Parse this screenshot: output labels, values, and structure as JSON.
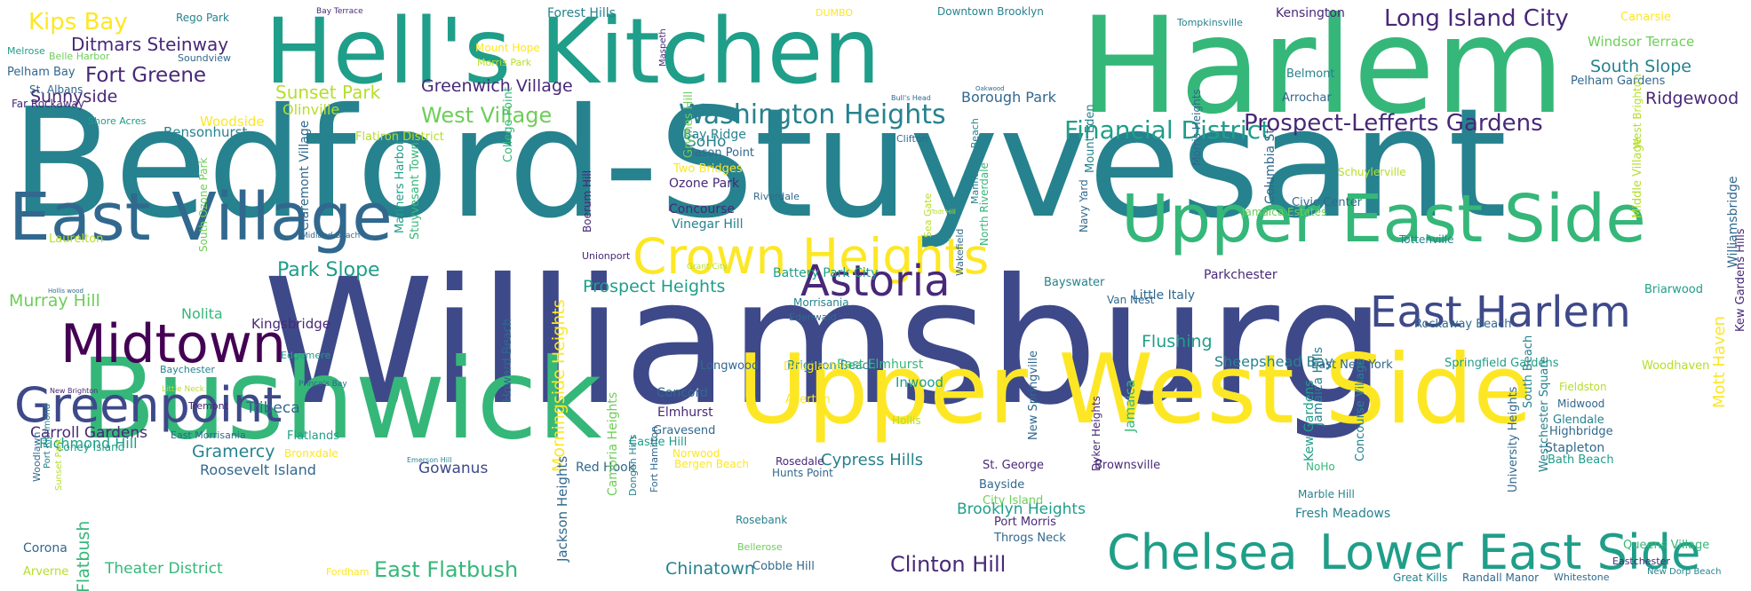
{
  "palette": {
    "p0": "#440154",
    "p1": "#482878",
    "p2": "#3e4989",
    "p3": "#31688e",
    "p4": "#26828e",
    "p5": "#1f9e89",
    "p6": "#35b779",
    "p7": "#6ece58",
    "p8": "#b5de2b",
    "p9": "#fde725"
  },
  "words": [
    {
      "text": "Bedford-Stuyvesant",
      "c": "p4"
    },
    {
      "text": "Williamsburg",
      "c": "p2"
    },
    {
      "text": "Harlem",
      "c": "p6"
    },
    {
      "text": "Hell's Kitchen",
      "c": "p5"
    },
    {
      "text": "Bushwick",
      "c": "p6"
    },
    {
      "text": "Upper West Side",
      "c": "p9"
    },
    {
      "text": "East Village",
      "c": "p3"
    },
    {
      "text": "Upper East Side",
      "c": "p6"
    },
    {
      "text": "Crown Heights",
      "c": "p9"
    },
    {
      "text": "Midtown",
      "c": "p0"
    },
    {
      "text": "Greenpoint",
      "c": "p2"
    },
    {
      "text": "Chelsea",
      "c": "p5"
    },
    {
      "text": "Lower East Side",
      "c": "p5"
    },
    {
      "text": "East Harlem",
      "c": "p2"
    },
    {
      "text": "Astoria",
      "c": "p1"
    },
    {
      "text": "Washington Heights",
      "c": "p4"
    },
    {
      "text": "Long Island City",
      "c": "p1"
    },
    {
      "text": "Financial District",
      "c": "p5"
    },
    {
      "text": "Prospect-Lefferts Gardens",
      "c": "p1"
    },
    {
      "text": "Kips Bay",
      "c": "p9"
    },
    {
      "text": "Fort Greene",
      "c": "p1"
    },
    {
      "text": "Ditmars Steinway",
      "c": "p1"
    },
    {
      "text": "Sunnyside",
      "c": "p1"
    },
    {
      "text": "West Village",
      "c": "p7"
    },
    {
      "text": "Greenwich Village",
      "c": "p1"
    },
    {
      "text": "Sunset Park",
      "c": "p8"
    },
    {
      "text": "Park Slope",
      "c": "p5"
    },
    {
      "text": "Murray Hill",
      "c": "p7"
    },
    {
      "text": "Prospect Heights",
      "c": "p5"
    },
    {
      "text": "Ridgewood",
      "c": "p1"
    },
    {
      "text": "South Slope",
      "c": "p4"
    },
    {
      "text": "Clinton Hill",
      "c": "p1"
    },
    {
      "text": "East Flatbush",
      "c": "p6"
    },
    {
      "text": "Flushing",
      "c": "p5"
    },
    {
      "text": "Carroll Gardens",
      "c": "p1"
    },
    {
      "text": "Gramercy",
      "c": "p4"
    },
    {
      "text": "Tribeca",
      "c": "p3"
    },
    {
      "text": "Nolita",
      "c": "p6"
    },
    {
      "text": "Gowanus",
      "c": "p2"
    },
    {
      "text": "Chinatown",
      "c": "p4"
    },
    {
      "text": "Cypress Hills",
      "c": "p4"
    },
    {
      "text": "Brooklyn Heights",
      "c": "p5"
    },
    {
      "text": "Theater District",
      "c": "p6"
    },
    {
      "text": "Roosevelt Island",
      "c": "p3"
    },
    {
      "text": "Flatbush",
      "c": "p6"
    },
    {
      "text": "Morningside Heights",
      "c": "p9"
    },
    {
      "text": "Richmond Hill",
      "c": "p5"
    },
    {
      "text": "SoHo",
      "c": "p4"
    },
    {
      "text": "Borough Park",
      "c": "p3"
    },
    {
      "text": "Woodside",
      "c": "p9"
    },
    {
      "text": "Kingsbridge",
      "c": "p1"
    },
    {
      "text": "Bensonhurst",
      "c": "p4"
    },
    {
      "text": "Bay Ridge",
      "c": "p4"
    },
    {
      "text": "Clason Point",
      "c": "p3"
    },
    {
      "text": "Two Bridges",
      "c": "p9"
    },
    {
      "text": "Forest Hills",
      "c": "p4"
    },
    {
      "text": "Rego Park",
      "c": "p4"
    },
    {
      "text": "Bay Terrace",
      "c": "p1"
    },
    {
      "text": "DUMBO",
      "c": "p9"
    },
    {
      "text": "Downtown Brooklyn",
      "c": "p4"
    },
    {
      "text": "Kensington",
      "c": "p1"
    },
    {
      "text": "Tompkinsville",
      "c": "p4"
    },
    {
      "text": "Canarsie",
      "c": "p9"
    },
    {
      "text": "Windsor Terrace",
      "c": "p7"
    },
    {
      "text": "Belmont",
      "c": "p4"
    },
    {
      "text": "Pelham Gardens",
      "c": "p3"
    },
    {
      "text": "Arrochar",
      "c": "p3"
    },
    {
      "text": "Civic Center",
      "c": "p3"
    },
    {
      "text": "Schuylerville",
      "c": "p8"
    },
    {
      "text": "Jamaica Estates",
      "c": "p7"
    },
    {
      "text": "Tottenville",
      "c": "p4"
    },
    {
      "text": "Briarwood",
      "c": "p5"
    },
    {
      "text": "Parkchester",
      "c": "p1"
    },
    {
      "text": "Little Italy",
      "c": "p3"
    },
    {
      "text": "Rockaway Beach",
      "c": "p3"
    },
    {
      "text": "Sheepshead Bay",
      "c": "p4"
    },
    {
      "text": "East New York",
      "c": "p3"
    },
    {
      "text": "Springfield Gardens",
      "c": "p5"
    },
    {
      "text": "Woodhaven",
      "c": "p8"
    },
    {
      "text": "Van Nest",
      "c": "p3"
    },
    {
      "text": "Bayswater",
      "c": "p4"
    },
    {
      "text": "Vinegar Hill",
      "c": "p4"
    },
    {
      "text": "Concourse",
      "c": "p1"
    },
    {
      "text": "Ozone Park",
      "c": "p1"
    },
    {
      "text": "Riverdale",
      "c": "p3"
    },
    {
      "text": "Battery Park City",
      "c": "p5"
    },
    {
      "text": "Morrisania",
      "c": "p4"
    },
    {
      "text": "Edenwald",
      "c": "p3"
    },
    {
      "text": "Brighton Beach",
      "c": "p4"
    },
    {
      "text": "East Elmhurst",
      "c": "p6"
    },
    {
      "text": "Longwood",
      "c": "p3"
    },
    {
      "text": "Concord",
      "c": "p3"
    },
    {
      "text": "Elmhurst",
      "c": "p1"
    },
    {
      "text": "Gravesend",
      "c": "p3"
    },
    {
      "text": "Castle Hill",
      "c": "p5"
    },
    {
      "text": "Norwood",
      "c": "p9"
    },
    {
      "text": "Bergen Beach",
      "c": "p9"
    },
    {
      "text": "Rosedale",
      "c": "p1"
    },
    {
      "text": "Hunts Point",
      "c": "p3"
    },
    {
      "text": "Allerton",
      "c": "p9"
    },
    {
      "text": "Douglaston",
      "c": "p9"
    },
    {
      "text": "Inwood",
      "c": "p5"
    },
    {
      "text": "Hollis",
      "c": "p8"
    },
    {
      "text": "Red Hook",
      "c": "p3"
    },
    {
      "text": "St. George",
      "c": "p1"
    },
    {
      "text": "Brownsville",
      "c": "p1"
    },
    {
      "text": "NoHo",
      "c": "p6"
    },
    {
      "text": "Marble Hill",
      "c": "p4"
    },
    {
      "text": "Fresh Meadows",
      "c": "p4"
    },
    {
      "text": "City Island",
      "c": "p7"
    },
    {
      "text": "Bayside",
      "c": "p3"
    },
    {
      "text": "Port Morris",
      "c": "p1"
    },
    {
      "text": "Throgs Neck",
      "c": "p3"
    },
    {
      "text": "Cobble Hill",
      "c": "p3"
    },
    {
      "text": "Bellerose",
      "c": "p7"
    },
    {
      "text": "Rosebank",
      "c": "p4"
    },
    {
      "text": "Fordham",
      "c": "p9"
    },
    {
      "text": "Arverne",
      "c": "p8"
    },
    {
      "text": "Corona",
      "c": "p3"
    },
    {
      "text": "Coney Island",
      "c": "p5"
    },
    {
      "text": "East Morrisania",
      "c": "p3"
    },
    {
      "text": "Flatlands",
      "c": "p5"
    },
    {
      "text": "Bronxdale",
      "c": "p9"
    },
    {
      "text": "Emerson Hill",
      "c": "p4"
    },
    {
      "text": "Tremont",
      "c": "p1"
    },
    {
      "text": "Little Neck",
      "c": "p8"
    },
    {
      "text": "New Brighton",
      "c": "p1"
    },
    {
      "text": "Prince's Bay",
      "c": "p3"
    },
    {
      "text": "Baychester",
      "c": "p4"
    },
    {
      "text": "Edgemere",
      "c": "p5"
    },
    {
      "text": "Hollis wood",
      "c": "p3"
    },
    {
      "text": "Laurelton",
      "c": "p8"
    },
    {
      "text": "Midland Beach",
      "c": "p3"
    },
    {
      "text": "Unionport",
      "c": "p1"
    },
    {
      "text": "Grant City",
      "c": "p8"
    },
    {
      "text": "Sea Gate",
      "c": "p8"
    },
    {
      "text": "Navy Yard",
      "c": "p3"
    },
    {
      "text": "Flatiron District",
      "c": "p8"
    },
    {
      "text": "Bull's Head",
      "c": "p3"
    },
    {
      "text": "Oakwood",
      "c": "p3"
    },
    {
      "text": "Clifton",
      "c": "p3"
    },
    {
      "text": "Todt Hill",
      "c": "p8"
    },
    {
      "text": "Shore Acres",
      "c": "p5"
    },
    {
      "text": "Far Rockaway",
      "c": "p1"
    },
    {
      "text": "St. Albans",
      "c": "p3"
    },
    {
      "text": "Pelham Bay",
      "c": "p3"
    },
    {
      "text": "Melrose",
      "c": "p5"
    },
    {
      "text": "Belle Harbor",
      "c": "p7"
    },
    {
      "text": "Soundview",
      "c": "p3"
    },
    {
      "text": "Mount Hope",
      "c": "p9"
    },
    {
      "text": "Morris Park",
      "c": "p8"
    },
    {
      "text": "Highbridge",
      "c": "p3"
    },
    {
      "text": "Stapleton",
      "c": "p3"
    },
    {
      "text": "Bath Beach",
      "c": "p5"
    },
    {
      "text": "Glendale",
      "c": "p4"
    },
    {
      "text": "Midwood",
      "c": "p3"
    },
    {
      "text": "Fieldston",
      "c": "p8"
    },
    {
      "text": "Queens Village",
      "c": "p6"
    },
    {
      "text": "Eastchester",
      "c": "p1"
    },
    {
      "text": "Great Kills",
      "c": "p4"
    },
    {
      "text": "Randall Manor",
      "c": "p3"
    },
    {
      "text": "Whitestone",
      "c": "p3"
    },
    {
      "text": "New Dorp Beach",
      "c": "p4"
    },
    {
      "text": "Mott Haven",
      "c": "p9"
    },
    {
      "text": "Kew Gardens Hills",
      "c": "p1"
    },
    {
      "text": "Williamsbridge",
      "c": "p3"
    },
    {
      "text": "Middle Village",
      "c": "p8"
    },
    {
      "text": "West Brighton",
      "c": "p8"
    },
    {
      "text": "Jamaica Hills",
      "c": "p4"
    },
    {
      "text": "University Heights",
      "c": "p3"
    },
    {
      "text": "Westchester Square",
      "c": "p4"
    },
    {
      "text": "South Beach",
      "c": "p4"
    },
    {
      "text": "Concourse Village",
      "c": "p4"
    },
    {
      "text": "Kew Gardens",
      "c": "p5"
    },
    {
      "text": "Jamaica",
      "c": "p6"
    },
    {
      "text": "Dyker Heights",
      "c": "p1"
    },
    {
      "text": "New Springville",
      "c": "p3"
    },
    {
      "text": "Columbia St",
      "c": "p3"
    },
    {
      "text": "Morris Heights",
      "c": "p3"
    },
    {
      "text": "Mount Eden",
      "c": "p4"
    },
    {
      "text": "North Riverdale",
      "c": "p6"
    },
    {
      "text": "Manhattan Beach",
      "c": "p4"
    },
    {
      "text": "Wakefield",
      "c": "p3"
    },
    {
      "text": "Boerum Hill",
      "c": "p1"
    },
    {
      "text": "Jackson Heights",
      "c": "p3"
    },
    {
      "text": "Cambria Heights",
      "c": "p7"
    },
    {
      "text": "Dongan Hills",
      "c": "p4"
    },
    {
      "text": "Fort Hamilton",
      "c": "p3"
    },
    {
      "text": "Grymes Hill",
      "c": "p7"
    },
    {
      "text": "Maspeth",
      "c": "p1"
    },
    {
      "text": "College Point",
      "c": "p6"
    },
    {
      "text": "Mariners Harbor",
      "c": "p5"
    },
    {
      "text": "Stuyvesant Town",
      "c": "p6"
    },
    {
      "text": "Claremont Village",
      "c": "p3"
    },
    {
      "text": "South Ozone Park",
      "c": "p7"
    },
    {
      "text": "Howard Beach",
      "c": "p3"
    },
    {
      "text": "Woodlawn",
      "c": "p3"
    },
    {
      "text": "Port Richmond",
      "c": "p4"
    },
    {
      "text": "Sunset Park",
      "c": "p8"
    },
    {
      "text": "Olinville",
      "c": "p8"
    }
  ]
}
